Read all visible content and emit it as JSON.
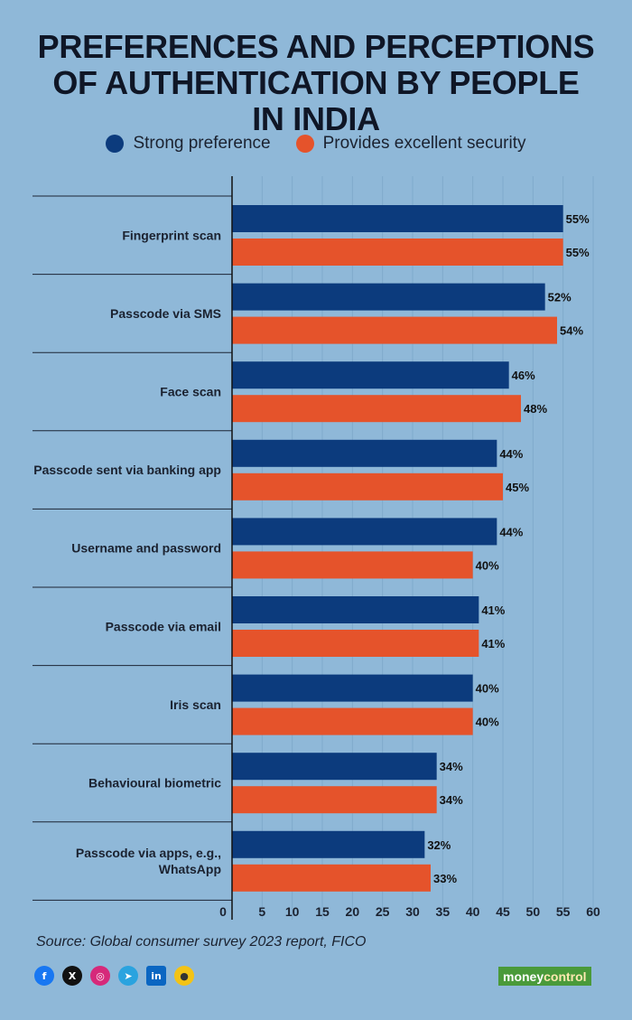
{
  "title": "PREFERENCES AND PERCEPTIONS\nOF AUTHENTICATION BY PEOPLE\nIN INDIA",
  "legend": [
    {
      "label": "Strong preference",
      "color": "#0c3b7d"
    },
    {
      "label": "Provides excellent security",
      "color": "#e5532b"
    }
  ],
  "source": "Source: Global consumer survey 2023 report, FICO",
  "social_icons": [
    "facebook-icon",
    "x-icon",
    "instagram-icon",
    "telegram-icon",
    "linkedin-icon",
    "koo-icon"
  ],
  "brand": {
    "part1": "money",
    "part2": "control",
    "color": "#4a9a3a"
  },
  "chart_data": {
    "type": "bar",
    "orientation": "horizontal",
    "categories": [
      "Fingerprint scan",
      "Passcode via SMS",
      "Face scan",
      "Passcode sent via banking app",
      "Username and password",
      "Passcode via email",
      "Iris scan",
      "Behavioural biometric",
      "Passcode via apps, e.g.,\nWhatsApp"
    ],
    "series": [
      {
        "name": "Strong preference",
        "color": "#0c3b7d",
        "values": [
          55,
          52,
          46,
          44,
          44,
          41,
          40,
          34,
          32
        ]
      },
      {
        "name": "Provides excellent security",
        "color": "#e5532b",
        "values": [
          55,
          54,
          48,
          45,
          40,
          41,
          40,
          34,
          33
        ]
      }
    ],
    "value_suffix": "%",
    "xlim": [
      0,
      60
    ],
    "xticks": [
      0,
      5,
      10,
      15,
      20,
      25,
      30,
      35,
      40,
      45,
      50,
      55,
      60
    ],
    "grid": true,
    "legend_position": "top"
  }
}
